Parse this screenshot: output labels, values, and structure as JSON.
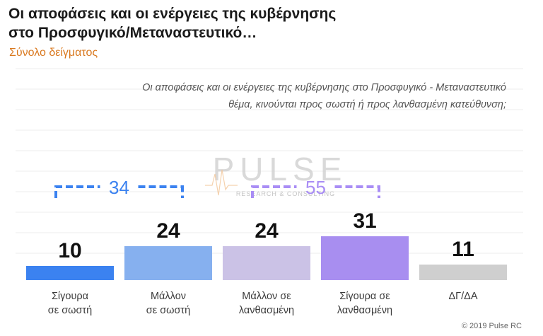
{
  "header": {
    "title_line1": "Οι αποφάσεις και οι ενέργειες της κυβέρνησης",
    "title_line2": "στο Προσφυγικό/Μεταναστευτικό…",
    "subtitle": "Σύνολο δείγματος"
  },
  "question": {
    "line1": "Οι αποφάσεις και οι ενέργειες της κυβέρνησης στο Προσφυγικό - Μεταναστευτικό",
    "line2": "θέμα, κινούνται προς σωστή ή προς λανθασμένη κατεύθυνση;"
  },
  "watermark": {
    "name": "PULSE",
    "tagline": "RESEARCH & CONSULTING"
  },
  "footer": {
    "copyright": "© 2019 Pulse RC"
  },
  "chart_data": {
    "type": "bar",
    "categories": [
      [
        "Σίγουρα",
        "σε σωστή"
      ],
      [
        "Μάλλον",
        "σε σωστή"
      ],
      [
        "Μάλλον σε",
        "λανθασμένη"
      ],
      [
        "Σίγουρα σε",
        "λανθασμένη"
      ],
      [
        "ΔΓ/ΔΑ"
      ]
    ],
    "values": [
      10,
      24,
      24,
      31,
      11
    ],
    "colors": [
      "#3b82f0",
      "#86b0ef",
      "#cbc2e6",
      "#a88ef0",
      "#cfcfcf"
    ],
    "ylim": [
      0,
      100
    ],
    "grid": true,
    "groups": [
      {
        "label": "34",
        "from": 0,
        "to": 1,
        "color": "#3b82f0"
      },
      {
        "label": "55",
        "from": 2,
        "to": 3,
        "color": "#a98df5"
      }
    ]
  }
}
